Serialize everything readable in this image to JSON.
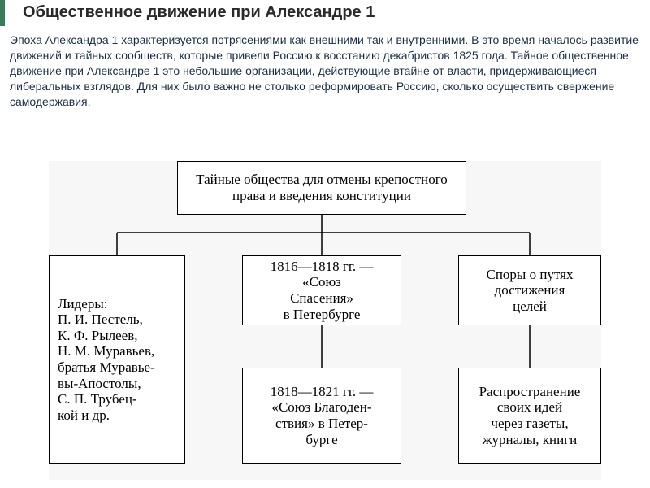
{
  "accent_color": "#3a7a5a",
  "title": {
    "text": "Общественное движение при Александре 1",
    "fontsize": 20,
    "color": "#2a2a2a"
  },
  "paragraph": {
    "text": "Эпоха Александра 1 характеризуется потрясениями как внешними так и внутренними. В это время началось развитие движений и тайных сообществ, которые привели Россию к восстанию декабристов 1825 года. Тайное общественное движение при Александре 1 это небольшие организации, действующие втайне от власти, придерживающиеся либеральных взглядов. Для них было важно не столько реформировать Россию, сколько осуществить свержение самодержавия.",
    "fontsize": 14,
    "color": "#1b2e44"
  },
  "diagram": {
    "background": "#f7f7f7",
    "box_border": "#000000",
    "box_bg": "#ffffff",
    "line_color": "#000000",
    "font_family": "Times New Roman, serif",
    "fontsize": 17,
    "root": "Тайные общества для отмены крепостного права и введения конституции",
    "left": "Лидеры:\nП. И. Пестель,\nК. Ф. Рылеев,\nН. М. Муравьев,\nбратья Муравье-\nвы-Апостолы,\nС. П. Трубец-\nкой и др.",
    "mid1": "1816—1818 гг. —\n«Союз\nСпасения»\nв Петербурге",
    "mid2": "1818—1821 гг. —\n«Союз Благоден-\nствия» в Петер-\nбурге",
    "r1": "Споры о путях\nдостижения\nцелей",
    "r2": "Распространение своих идей\nчерез газеты,\nжурналы, книги",
    "edges": [
      {
        "from": "root",
        "to": "left"
      },
      {
        "from": "root",
        "to": "mid1"
      },
      {
        "from": "root",
        "to": "r1"
      },
      {
        "from": "mid1",
        "to": "mid2"
      },
      {
        "from": "r1",
        "to": "r2"
      }
    ]
  }
}
